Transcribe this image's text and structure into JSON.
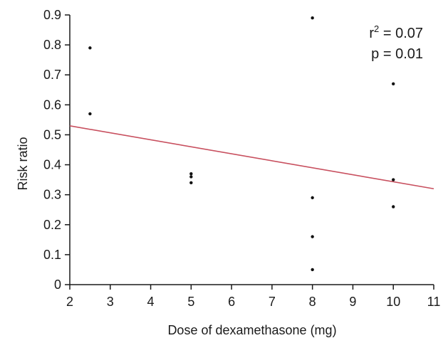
{
  "chart_data": {
    "type": "scatter",
    "title": "",
    "xlabel": "Dose of dexamethasone (mg)",
    "ylabel": "Risk ratio",
    "xlim": [
      2,
      11
    ],
    "ylim": [
      0,
      0.9
    ],
    "x_ticks": [
      "2",
      "3",
      "4",
      "5",
      "6",
      "7",
      "8",
      "9",
      "10",
      "11"
    ],
    "y_ticks": [
      "0",
      "0.1",
      "0.2",
      "0.3",
      "0.4",
      "0.5",
      "0.6",
      "0.7",
      "0.8",
      "0.9"
    ],
    "grid": false,
    "points": [
      {
        "x": 2.5,
        "y": 0.79
      },
      {
        "x": 2.5,
        "y": 0.57
      },
      {
        "x": 5,
        "y": 0.37
      },
      {
        "x": 5,
        "y": 0.36
      },
      {
        "x": 5,
        "y": 0.34
      },
      {
        "x": 8,
        "y": 0.89
      },
      {
        "x": 8,
        "y": 0.29
      },
      {
        "x": 8,
        "y": 0.16
      },
      {
        "x": 8,
        "y": 0.05
      },
      {
        "x": 10,
        "y": 0.67
      },
      {
        "x": 10,
        "y": 0.35
      },
      {
        "x": 10,
        "y": 0.26
      }
    ],
    "regression_line": {
      "x": [
        2,
        11
      ],
      "y": [
        0.53,
        0.32
      ]
    },
    "annotations": {
      "r2_label": "r",
      "r2_sup": "2",
      "r2_value": " = 0.07",
      "p_text": "p = 0.01"
    },
    "colors": {
      "points": "#111111",
      "regression": "#c8505f",
      "axis": "#1a1a1a"
    }
  }
}
